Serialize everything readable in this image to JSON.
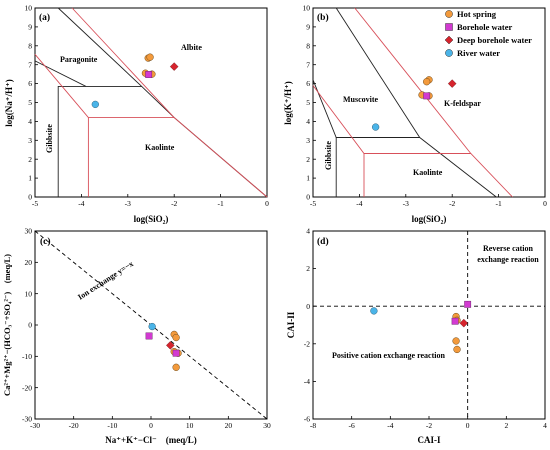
{
  "colors": {
    "hot_spring": "#f39a3c",
    "borehole": "#d23ad1",
    "deep_borehole": "#d6242d",
    "river": "#4ab4e8",
    "black_line": "#222222",
    "red_line": "#d8505a"
  },
  "legend": [
    "Hot spring",
    "Borehole water",
    "Deep borehole water",
    "River water"
  ],
  "chart_data": [
    {
      "id": "a",
      "type": "scatter",
      "panel_label": "(a)",
      "xlabel": "log(SiO₂)",
      "ylabel": "log(Na⁺/H⁺)",
      "xlim": [
        -5,
        0
      ],
      "ylim": [
        0,
        10
      ],
      "xticks": [
        "-5",
        "-4",
        "-3",
        "-2",
        "-1",
        "0"
      ],
      "yticks": [
        "0",
        "1",
        "2",
        "3",
        "4",
        "5",
        "6",
        "7",
        "8",
        "9",
        "10"
      ],
      "regions": [
        "Paragonite",
        "Albite",
        "Gibbsite",
        "Kaolinte"
      ],
      "series": [
        {
          "kind": "hot_spring",
          "points": [
            [
              -2.56,
              7.35
            ],
            [
              -2.52,
              7.4
            ],
            [
              -2.62,
              6.55
            ],
            [
              -2.48,
              6.5
            ]
          ]
        },
        {
          "kind": "borehole",
          "points": [
            [
              -2.55,
              6.48
            ]
          ]
        },
        {
          "kind": "deep_borehole",
          "points": [
            [
              -2.0,
              6.9
            ]
          ]
        },
        {
          "kind": "river",
          "points": [
            [
              -3.7,
              4.9
            ]
          ]
        }
      ],
      "lines_black": [
        [
          [
            -5,
            7.2
          ],
          [
            -3.9,
            5.85
          ],
          [
            -2.7,
            5.85
          ],
          [
            -2.0,
            4.2
          ],
          [
            0,
            0
          ]
        ],
        [
          [
            -4.5,
            10
          ],
          [
            -2.7,
            5.85
          ]
        ],
        [
          [
            -4.5,
            0
          ],
          [
            -4.5,
            5.85
          ],
          [
            -3.9,
            5.85
          ]
        ]
      ],
      "lines_red": [
        [
          [
            -5,
            7.55
          ],
          [
            -3.85,
            4.2
          ],
          [
            -2.0,
            4.2
          ],
          [
            0,
            0
          ]
        ],
        [
          [
            -4.2,
            10
          ],
          [
            -2.0,
            4.2
          ]
        ],
        [
          [
            -3.85,
            0
          ],
          [
            -3.85,
            4.2
          ]
        ]
      ]
    },
    {
      "id": "b",
      "type": "scatter",
      "panel_label": "(b)",
      "xlabel": "log(SiO₂)",
      "ylabel": "log(K⁺/H⁺)",
      "xlim": [
        -5,
        0
      ],
      "ylim": [
        0,
        10
      ],
      "xticks": [
        "-5",
        "-4",
        "-3",
        "-2",
        "-1",
        "0"
      ],
      "yticks": [
        "0",
        "1",
        "2",
        "3",
        "4",
        "5",
        "6",
        "7",
        "8",
        "9",
        "10"
      ],
      "regions": [
        "Muscovite",
        "K-feldspar",
        "Gibbsite",
        "Kaolinte"
      ],
      "series": [
        {
          "kind": "hot_spring",
          "points": [
            [
              -2.5,
              6.2
            ],
            [
              -2.55,
              6.1
            ],
            [
              -2.65,
              5.4
            ],
            [
              -2.5,
              5.35
            ]
          ]
        },
        {
          "kind": "borehole",
          "points": [
            [
              -2.55,
              5.35
            ]
          ]
        },
        {
          "kind": "deep_borehole",
          "points": [
            [
              -2.0,
              6.0
            ]
          ]
        },
        {
          "kind": "river",
          "points": [
            [
              -3.65,
              3.7
            ]
          ]
        }
      ],
      "lines_black": [
        [
          [
            -5,
            6.2
          ],
          [
            -4.5,
            3.15
          ],
          [
            -2.7,
            3.15
          ],
          [
            -1.05,
            0
          ]
        ],
        [
          [
            -4.5,
            10
          ],
          [
            -2.7,
            3.15
          ]
        ],
        [
          [
            -4.5,
            0
          ],
          [
            -4.5,
            3.15
          ]
        ]
      ],
      "lines_red": [
        [
          [
            -5,
            5.9
          ],
          [
            -3.9,
            2.3
          ],
          [
            -1.6,
            2.3
          ],
          [
            -0.7,
            0
          ]
        ],
        [
          [
            -4.1,
            10
          ],
          [
            -1.6,
            2.3
          ]
        ],
        [
          [
            -3.9,
            0
          ],
          [
            -3.9,
            2.3
          ]
        ]
      ]
    },
    {
      "id": "c",
      "type": "scatter",
      "panel_label": "(c)",
      "xlabel": "Na⁺+K⁺−Cl⁻ (meq/L)",
      "ylabel": "Ca²⁺+Mg²⁺−(HCO₃⁻+SO₄²⁻) (meq/L)",
      "xlim": [
        -30,
        30
      ],
      "ylim": [
        -30,
        30
      ],
      "xticks": [
        "-30",
        "-20",
        "-10",
        "0",
        "10",
        "20",
        "30"
      ],
      "yticks": [
        "-30",
        "-20",
        "-10",
        "0",
        "10",
        "20",
        "30"
      ],
      "annotation": "Ion exchange y=−x",
      "series": [
        {
          "kind": "hot_spring",
          "points": [
            [
              6,
              -3
            ],
            [
              6.5,
              -4
            ],
            [
              7,
              -9
            ],
            [
              6.5,
              -13.5
            ],
            [
              6,
              -8.5
            ]
          ]
        },
        {
          "kind": "borehole",
          "points": [
            [
              -0.5,
              -3.5
            ],
            [
              6.5,
              -9
            ]
          ]
        },
        {
          "kind": "deep_borehole",
          "points": [
            [
              5,
              -6.5
            ]
          ]
        },
        {
          "kind": "river",
          "points": [
            [
              0.3,
              -0.5
            ]
          ]
        }
      ],
      "dashed_line": [
        [
          -30,
          30
        ],
        [
          30,
          -30
        ]
      ]
    },
    {
      "id": "d",
      "type": "scatter",
      "panel_label": "(d)",
      "xlabel": "CAI-I",
      "ylabel": "CAI-II",
      "xlim": [
        -8,
        4
      ],
      "ylim": [
        -6,
        4
      ],
      "xticks": [
        "-8",
        "-6",
        "-4",
        "-2",
        "0",
        "2",
        "4"
      ],
      "yticks": [
        "-6",
        "-4",
        "-2",
        "0",
        "2",
        "4"
      ],
      "annotations": [
        "Reverse cation",
        "exchange reaction",
        "Positive cation exchange reaction"
      ],
      "series": [
        {
          "kind": "hot_spring",
          "points": [
            [
              -0.6,
              -0.55
            ],
            [
              -0.55,
              -0.75
            ],
            [
              -0.6,
              -1.85
            ],
            [
              -0.55,
              -2.3
            ]
          ]
        },
        {
          "kind": "borehole",
          "points": [
            [
              -0.65,
              -0.8
            ],
            [
              0,
              0.1
            ]
          ]
        },
        {
          "kind": "deep_borehole",
          "points": [
            [
              -0.2,
              -0.9
            ]
          ]
        },
        {
          "kind": "river",
          "points": [
            [
              -4.85,
              -0.25
            ]
          ]
        }
      ]
    }
  ]
}
